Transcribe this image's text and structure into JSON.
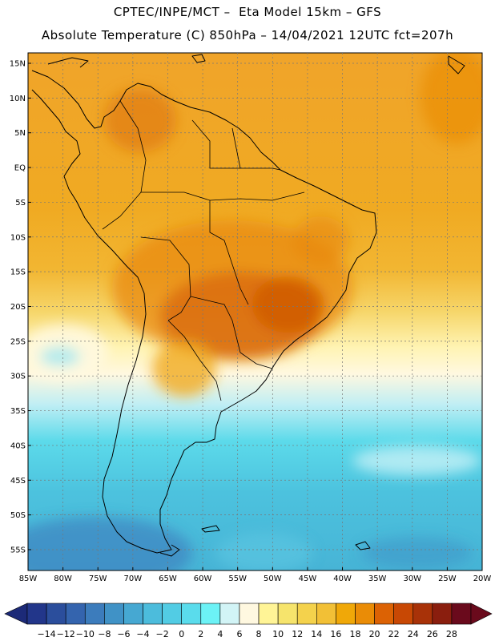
{
  "header": {
    "line1": "CPTEC/INPE/MCT –  Eta Model 15km – GFS",
    "line2": "Absolute Temperature (C) 850hPa – 14/04/2021 12UTC fct=207h"
  },
  "map": {
    "lon_range": [
      -85,
      -20
    ],
    "lat_range": [
      -58,
      16.5
    ],
    "lat_ticks": [
      {
        "value": 15,
        "label": "15N"
      },
      {
        "value": 10,
        "label": "10N"
      },
      {
        "value": 5,
        "label": "5N"
      },
      {
        "value": 0,
        "label": "EQ"
      },
      {
        "value": -5,
        "label": "5S"
      },
      {
        "value": -10,
        "label": "10S"
      },
      {
        "value": -15,
        "label": "15S"
      },
      {
        "value": -20,
        "label": "20S"
      },
      {
        "value": -25,
        "label": "25S"
      },
      {
        "value": -30,
        "label": "30S"
      },
      {
        "value": -35,
        "label": "35S"
      },
      {
        "value": -40,
        "label": "40S"
      },
      {
        "value": -45,
        "label": "45S"
      },
      {
        "value": -50,
        "label": "50S"
      },
      {
        "value": -55,
        "label": "55S"
      }
    ],
    "lon_ticks": [
      {
        "value": -85,
        "label": "85W"
      },
      {
        "value": -80,
        "label": "80W"
      },
      {
        "value": -75,
        "label": "75W"
      },
      {
        "value": -70,
        "label": "70W"
      },
      {
        "value": -65,
        "label": "65W"
      },
      {
        "value": -60,
        "label": "60W"
      },
      {
        "value": -55,
        "label": "55W"
      },
      {
        "value": -50,
        "label": "50W"
      },
      {
        "value": -45,
        "label": "45W"
      },
      {
        "value": -40,
        "label": "40W"
      },
      {
        "value": -35,
        "label": "35W"
      },
      {
        "value": -30,
        "label": "30W"
      },
      {
        "value": -25,
        "label": "25W"
      },
      {
        "value": -20,
        "label": "20W"
      }
    ],
    "gridlines": true
  },
  "colorbar": {
    "labels": [
      "-14",
      "-12",
      "-10",
      "-8",
      "-6",
      "-4",
      "-2",
      "0",
      "2",
      "4",
      "6",
      "8",
      "10",
      "12",
      "14",
      "16",
      "18",
      "20",
      "22",
      "24",
      "26",
      "28"
    ],
    "under_color": "#1c2a78",
    "over_color": "#6a0a1c",
    "colors": [
      "#22368a",
      "#2b4e9c",
      "#3464ae",
      "#3c7cbc",
      "#4092c6",
      "#46a8d2",
      "#4cbcdc",
      "#52cce4",
      "#5adcec",
      "#6cf2f6",
      "#d2f4f6",
      "#fff8e0",
      "#fff496",
      "#f6e46c",
      "#f4d24c",
      "#f2c036",
      "#f0a808",
      "#ea8c06",
      "#dc6204",
      "#c84804",
      "#a83208",
      "#8a1e0e",
      "#6a0a1c"
    ]
  }
}
